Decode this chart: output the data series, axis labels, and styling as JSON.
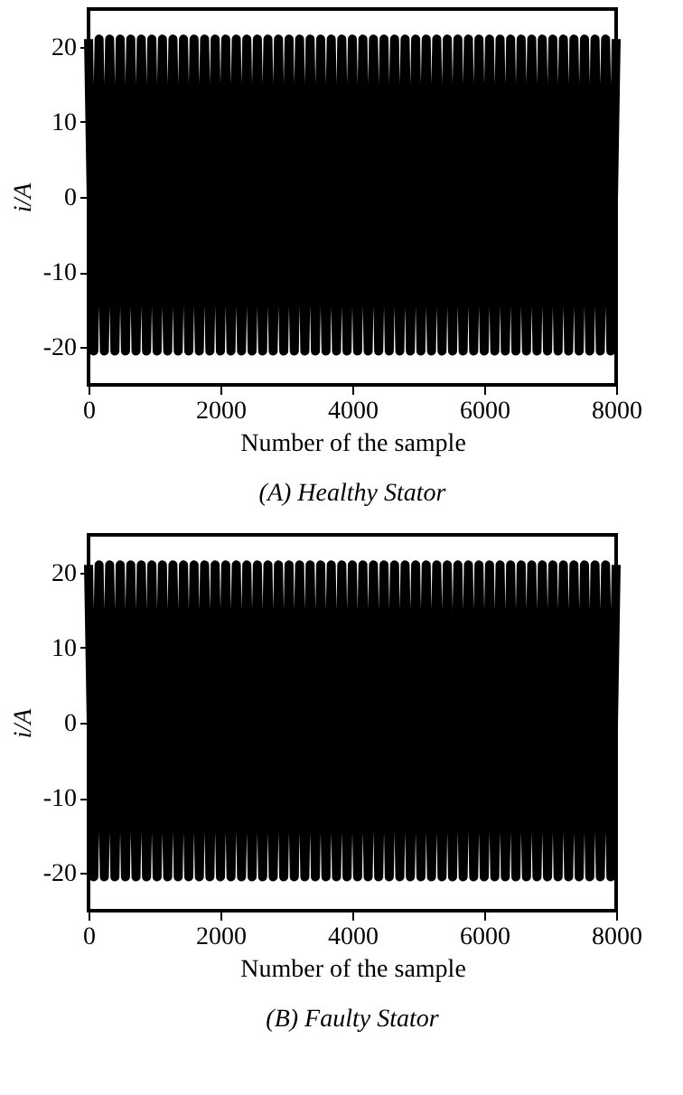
{
  "chart_data": [
    {
      "type": "line",
      "title": "(A) Healthy Stator",
      "xlabel": "Number of the sample",
      "ylabel": "i/A",
      "xlim": [
        0,
        8000
      ],
      "xticks": [
        0,
        2000,
        4000,
        6000,
        8000
      ],
      "ylim": [
        -25,
        25
      ],
      "yticks": [
        -20,
        -10,
        0,
        10,
        20
      ],
      "grid": false,
      "marker": "none",
      "line_style": "solid",
      "x": [
        0,
        80,
        160,
        240,
        320,
        400,
        480,
        560,
        640,
        720,
        800,
        880,
        960,
        1040,
        1120,
        1200,
        1280,
        1360,
        1440,
        1520,
        1600,
        1680,
        1760,
        1840,
        1920,
        2000,
        2080,
        2160,
        2240,
        2320,
        2400,
        2480,
        2560,
        2640,
        2720,
        2800,
        2880,
        2960,
        3040,
        3120,
        3200,
        3280,
        3360,
        3440,
        3520,
        3600,
        3680,
        3760,
        3840,
        3920,
        4000,
        4080,
        4160,
        4240,
        4320,
        4400,
        4480,
        4560,
        4640,
        4720,
        4800,
        4880,
        4960,
        5040,
        5120,
        5200,
        5280,
        5360,
        5440,
        5520,
        5600,
        5680,
        5760,
        5840,
        5920,
        6000,
        6080,
        6160,
        6240,
        6320,
        6400,
        6480,
        6560,
        6640,
        6720,
        6800,
        6880,
        6960,
        7040,
        7120,
        7200,
        7280,
        7360,
        7440,
        7520,
        7600,
        7680,
        7760,
        7840,
        7920,
        8000
      ],
      "series": [
        {
          "color": "#000000",
          "values": [
            21,
            -20.5,
            21,
            -20.5,
            21,
            -20.5,
            21,
            -20.5,
            21,
            -20.5,
            21,
            -20.5,
            21,
            -20.5,
            21,
            -20.5,
            21,
            -20.5,
            21,
            -20.5,
            21,
            -20.5,
            21,
            -20.5,
            21,
            -20.5,
            21,
            -20.5,
            21,
            -20.5,
            21,
            -20.5,
            21,
            -20.5,
            21,
            -20.5,
            21,
            -20.5,
            21,
            -20.5,
            21,
            -20.5,
            21,
            -20.5,
            21,
            -20.5,
            21,
            -20.5,
            21,
            -20.5,
            21,
            -20.5,
            21,
            -20.5,
            21,
            -20.5,
            21,
            -20.5,
            21,
            -20.5,
            21,
            -20.5,
            21,
            -20.5,
            21,
            -20.5,
            21,
            -20.5,
            21,
            -20.5,
            21,
            -20.5,
            21,
            -20.5,
            21,
            -20.5,
            21,
            -20.5,
            21,
            -20.5,
            21,
            -20.5,
            21,
            -20.5,
            21,
            -20.5,
            21,
            -20.5,
            21,
            -20.5,
            21,
            -20.5,
            21,
            -20.5,
            21,
            -20.5,
            21,
            -20.5,
            21,
            -20.5,
            21
          ]
        }
      ]
    },
    {
      "type": "line",
      "title": "(B) Faulty Stator",
      "xlabel": "Number of the sample",
      "ylabel": "i/A",
      "xlim": [
        0,
        8000
      ],
      "xticks": [
        0,
        2000,
        4000,
        6000,
        8000
      ],
      "ylim": [
        -25,
        25
      ],
      "yticks": [
        -20,
        -10,
        0,
        10,
        20
      ],
      "grid": false,
      "marker": "none",
      "line_style": "solid",
      "x": [
        0,
        80,
        160,
        240,
        320,
        400,
        480,
        560,
        640,
        720,
        800,
        880,
        960,
        1040,
        1120,
        1200,
        1280,
        1360,
        1440,
        1520,
        1600,
        1680,
        1760,
        1840,
        1920,
        2000,
        2080,
        2160,
        2240,
        2320,
        2400,
        2480,
        2560,
        2640,
        2720,
        2800,
        2880,
        2960,
        3040,
        3120,
        3200,
        3280,
        3360,
        3440,
        3520,
        3600,
        3680,
        3760,
        3840,
        3920,
        4000,
        4080,
        4160,
        4240,
        4320,
        4400,
        4480,
        4560,
        4640,
        4720,
        4800,
        4880,
        4960,
        5040,
        5120,
        5200,
        5280,
        5360,
        5440,
        5520,
        5600,
        5680,
        5760,
        5840,
        5920,
        6000,
        6080,
        6160,
        6240,
        6320,
        6400,
        6480,
        6560,
        6640,
        6720,
        6800,
        6880,
        6960,
        7040,
        7120,
        7200,
        7280,
        7360,
        7440,
        7520,
        7600,
        7680,
        7760,
        7840,
        7920,
        8000
      ],
      "series": [
        {
          "color": "#000000",
          "values": [
            21,
            -20.5,
            21,
            -20.5,
            21,
            -20.5,
            21,
            -20.5,
            21,
            -20.5,
            21,
            -20.5,
            21,
            -20.5,
            21,
            -20.5,
            21,
            -20.5,
            21,
            -20.5,
            21,
            -20.5,
            21,
            -20.5,
            21,
            -20.5,
            21,
            -20.5,
            21,
            -20.5,
            21,
            -20.5,
            21,
            -20.5,
            21,
            -20.5,
            21,
            -20.5,
            21,
            -20.5,
            21,
            -20.5,
            21,
            -20.5,
            21,
            -20.5,
            21,
            -20.5,
            21,
            -20.5,
            21,
            -20.5,
            21,
            -20.5,
            21,
            -20.5,
            21,
            -20.5,
            21,
            -20.5,
            21,
            -20.5,
            21,
            -20.5,
            21,
            -20.5,
            21,
            -20.5,
            21,
            -20.5,
            21,
            -20.5,
            21,
            -20.5,
            21,
            -20.5,
            21,
            -20.5,
            21,
            -20.5,
            21,
            -20.5,
            21,
            -20.5,
            21,
            -20.5,
            21,
            -20.5,
            21,
            -20.5,
            21,
            -20.5,
            21,
            -20.5,
            21,
            -20.5,
            21,
            -20.5,
            21,
            -20.5,
            21
          ]
        }
      ]
    }
  ]
}
